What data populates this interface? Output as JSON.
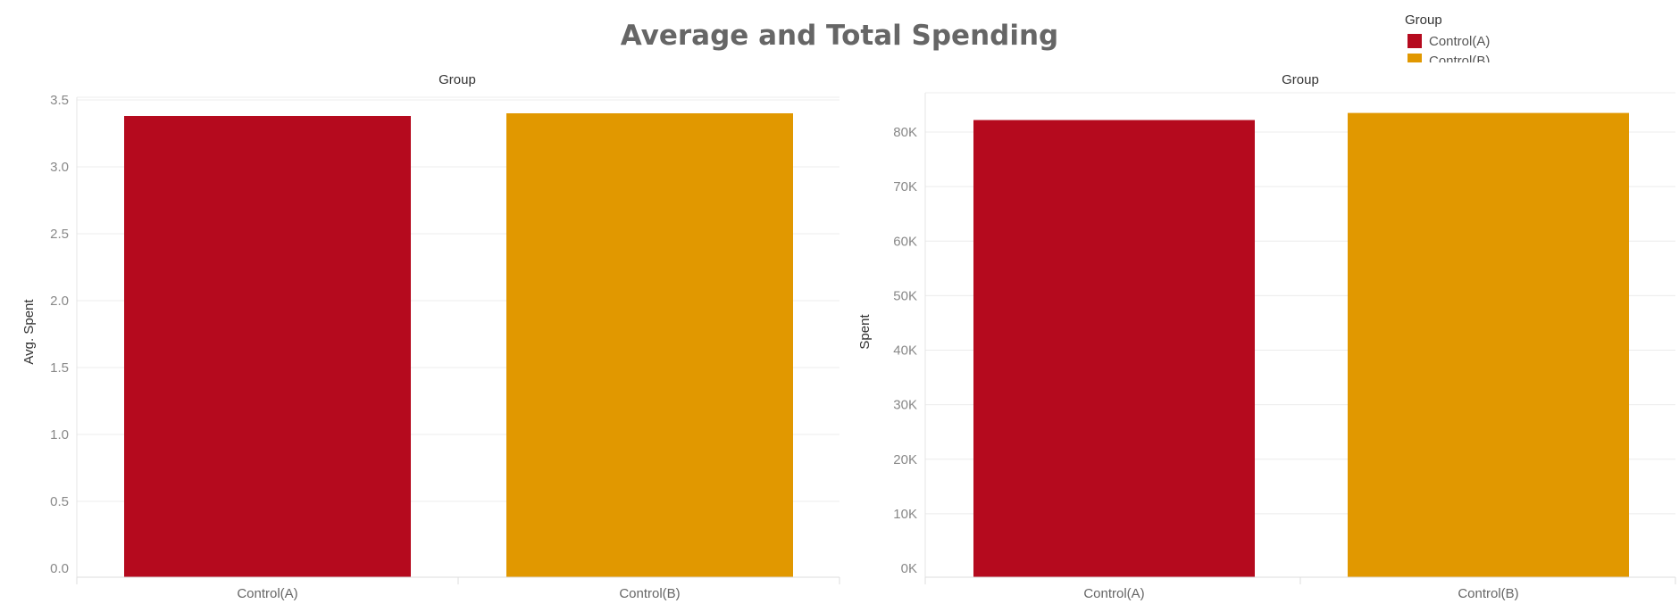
{
  "title": "Average and Total Spending",
  "legend": {
    "title": "Group",
    "items": [
      {
        "label": "Control(A)",
        "color": "#b50a1e"
      },
      {
        "label": "Control(B)",
        "color": "#e19800"
      }
    ]
  },
  "chart_data": [
    {
      "type": "bar",
      "title": "Group",
      "categories": [
        "Control(A)",
        "Control(B)"
      ],
      "values": [
        3.38,
        3.4
      ],
      "colors": [
        "#b50a1e",
        "#e19800"
      ],
      "ylabel": "Avg. Spent",
      "ylim": [
        0,
        3.5
      ],
      "yticks": [
        "0.0",
        "0.5",
        "1.0",
        "1.5",
        "2.0",
        "2.5",
        "3.0",
        "3.5"
      ],
      "grid": true
    },
    {
      "type": "bar",
      "title": "Group",
      "categories": [
        "Control(A)",
        "Control(B)"
      ],
      "values": [
        82200,
        83500
      ],
      "colors": [
        "#b50a1e",
        "#e19800"
      ],
      "ylabel": "Spent",
      "ylim": [
        0,
        80000
      ],
      "yticks": [
        "0K",
        "10K",
        "20K",
        "30K",
        "40K",
        "50K",
        "60K",
        "70K",
        "80K"
      ],
      "grid": true
    }
  ]
}
